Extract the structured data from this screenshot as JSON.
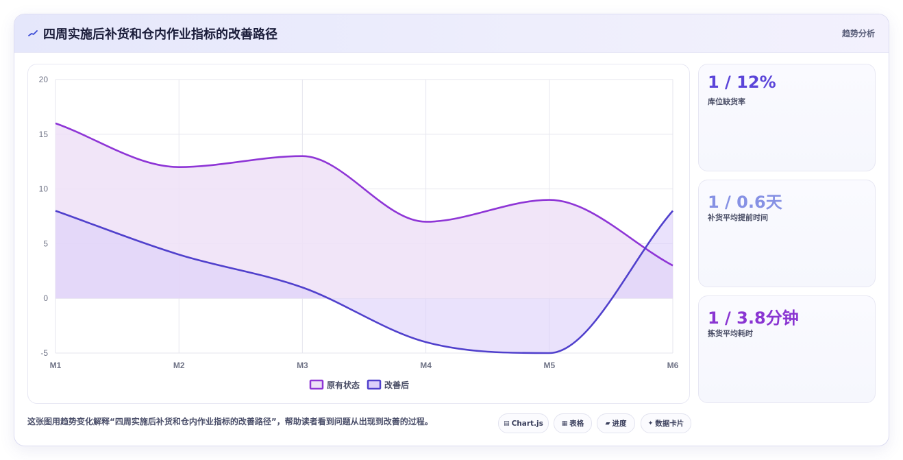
{
  "header": {
    "icon": "chart-line-icon",
    "title": "四周实施后补货和仓内作业指标的改善路径",
    "tag": "趋势分析"
  },
  "chart_data": {
    "type": "area",
    "categories": [
      "M1",
      "M2",
      "M3",
      "M4",
      "M5",
      "M6"
    ],
    "ylim": [
      -5,
      20
    ],
    "yticks": [
      "20",
      "15",
      "10",
      "5",
      "0",
      "-5"
    ],
    "grid": true,
    "legend": "bottom",
    "series": [
      {
        "name": "原有状态",
        "values": [
          16,
          12,
          13,
          7,
          9,
          3
        ],
        "color": "#8e35d6",
        "fill": "#eee0f7"
      },
      {
        "name": "改善后",
        "values": [
          8,
          4,
          1,
          -4,
          -5,
          8
        ],
        "color": "#5040cc",
        "fill": "#dccffa"
      }
    ]
  },
  "kpis": [
    {
      "value": "1 / 12%",
      "label": "库位缺货率",
      "color": "#5b45d9"
    },
    {
      "value": "1 / 0.6天",
      "label": "补货平均提前时间",
      "color": "#8691e4"
    },
    {
      "value": "1 / 3.8分钟",
      "label": "拣货平均耗时",
      "color": "#8a35d2"
    }
  ],
  "footer": {
    "note": "这张图用趋势变化解释“四周实施后补货和仓内作业指标的改善路径”，帮助读者看到问题从出现到改善的过程。",
    "chips": [
      {
        "icon": "chart-icon",
        "label": "Chart.js"
      },
      {
        "icon": "table-icon",
        "label": "表格"
      },
      {
        "icon": "progress-icon",
        "label": "进度"
      },
      {
        "icon": "sparkle-icon",
        "label": "数据卡片"
      }
    ]
  }
}
